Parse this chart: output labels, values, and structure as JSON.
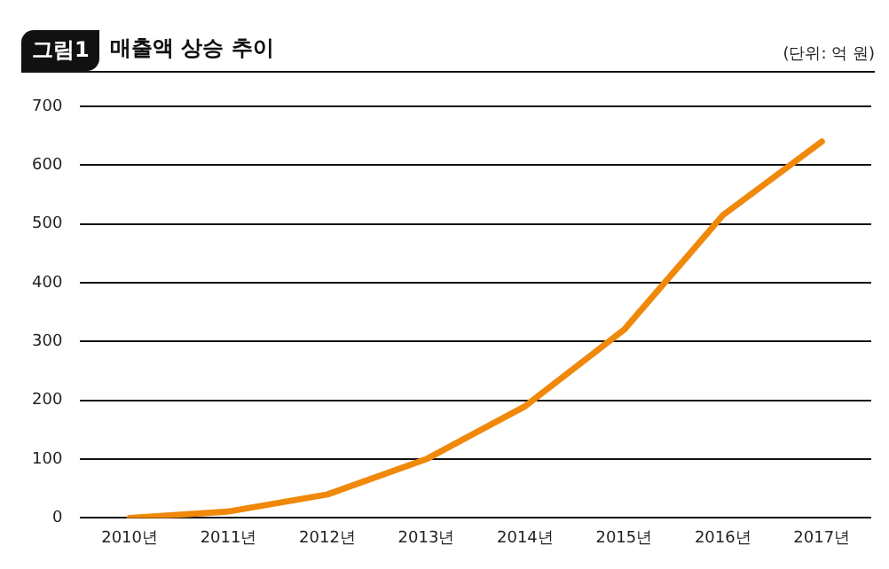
{
  "chart_data": {
    "type": "line",
    "title": "매출액 상승 추이",
    "annotations": [
      "그림1",
      "(단위: 억 원)"
    ],
    "categories": [
      "2010년",
      "2011년",
      "2012년",
      "2013년",
      "2014년",
      "2015년",
      "2016년",
      "2017년"
    ],
    "series": [
      {
        "color": "#f0880a",
        "values": [
          0,
          11,
          40,
          100,
          190,
          320,
          515,
          640
        ]
      }
    ],
    "ylim": [
      0,
      700
    ],
    "yticks": [
      0,
      100,
      200,
      300,
      400,
      500,
      600,
      700
    ],
    "grid": "y",
    "legend": false,
    "marker": "none",
    "line_style": "solid"
  }
}
